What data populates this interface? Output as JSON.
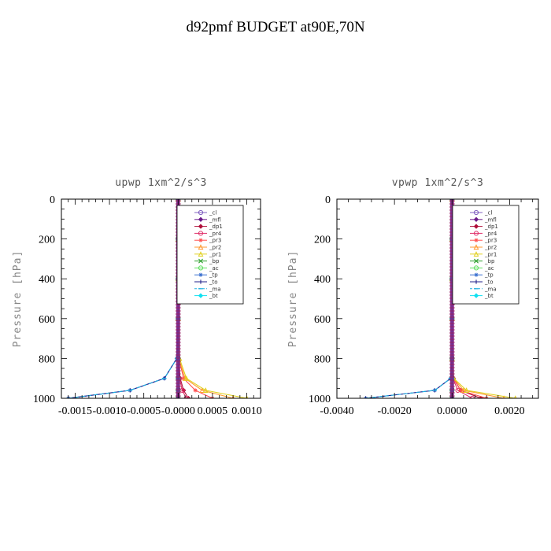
{
  "title": "d92pmf  BUDGET at90E,70N",
  "chart_data": [
    {
      "type": "line",
      "title": "upwp  1xm^2/s^3",
      "ylabel": "Pressure [hPa]",
      "xlabel": "",
      "xlim": [
        -0.0017,
        0.0012
      ],
      "ylim": [
        1000,
        0
      ],
      "xticks": [
        -0.0015,
        -0.001,
        -0.0005,
        0.0,
        0.0005,
        0.001
      ],
      "xtick_labels": [
        "-0.0015",
        "-0.0010",
        "-0.0005",
        "-0.0000",
        "0.0005",
        "0.0010"
      ],
      "yticks": [
        0,
        200,
        400,
        600,
        800,
        1000
      ],
      "ytick_labels": [
        "0",
        "200",
        "400",
        "600",
        "800",
        "1000"
      ],
      "legend_position": "top-right",
      "series": [
        {
          "name": "_cl",
          "color": "#8060c0",
          "marker": "circle",
          "x": [
            0,
            0,
            0,
            0,
            0,
            0,
            0,
            0
          ],
          "y": [
            0,
            200,
            400,
            600,
            800,
            900,
            960,
            1000
          ]
        },
        {
          "name": "_mfl",
          "color": "#6a1a8a",
          "marker": "diamond",
          "x": [
            0,
            0,
            0,
            0,
            0,
            0,
            0,
            0
          ],
          "y": [
            0,
            200,
            400,
            600,
            800,
            900,
            960,
            1000
          ]
        },
        {
          "name": "_dp1",
          "color": "#b0103a",
          "marker": "diamond",
          "x": [
            0,
            0,
            0,
            0,
            0,
            3e-05,
            8e-05,
            0.00015
          ],
          "y": [
            0,
            200,
            400,
            600,
            800,
            900,
            960,
            1000
          ]
        },
        {
          "name": "_pr4",
          "color": "#e0306a",
          "marker": "circle",
          "x": [
            0,
            0,
            0,
            0,
            0,
            2e-05,
            6e-05,
            0.00012
          ],
          "y": [
            0,
            200,
            400,
            600,
            800,
            900,
            960,
            1000
          ]
        },
        {
          "name": "_pr3",
          "color": "#ff5050",
          "marker": "star",
          "x": [
            0,
            0,
            0,
            0,
            1e-05,
            8e-05,
            0.00025,
            0.0005
          ],
          "y": [
            0,
            200,
            400,
            600,
            800,
            900,
            960,
            1000
          ]
        },
        {
          "name": "_pr2",
          "color": "#ff9a30",
          "marker": "triangle",
          "x": [
            0,
            0,
            0,
            0,
            1e-05,
            0.0001,
            0.00035,
            0.0008
          ],
          "y": [
            0,
            200,
            400,
            600,
            800,
            900,
            960,
            1000
          ]
        },
        {
          "name": "_pr1",
          "color": "#e0d020",
          "marker": "triangle",
          "x": [
            0,
            0,
            0,
            0,
            2e-05,
            0.00012,
            0.0004,
            0.001
          ],
          "y": [
            0,
            200,
            400,
            600,
            800,
            900,
            960,
            1000
          ]
        },
        {
          "name": "_bp",
          "color": "#30a030",
          "marker": "cross",
          "x": [
            0,
            0,
            0,
            0,
            0,
            0,
            0,
            0
          ],
          "y": [
            0,
            200,
            400,
            600,
            800,
            900,
            960,
            1000
          ]
        },
        {
          "name": "_ac",
          "color": "#60e060",
          "marker": "circle",
          "x": [
            0,
            0,
            0,
            0,
            0,
            0,
            0,
            0
          ],
          "y": [
            0,
            200,
            400,
            600,
            800,
            900,
            960,
            1000
          ]
        },
        {
          "name": "_tp",
          "color": "#3a70d0",
          "marker": "star",
          "x": [
            0,
            0,
            0,
            0,
            -2e-05,
            -0.0002,
            -0.0007,
            -0.0016
          ],
          "y": [
            0,
            200,
            400,
            600,
            800,
            900,
            960,
            1000
          ]
        },
        {
          "name": "_to",
          "color": "#20208a",
          "marker": "plus",
          "x": [
            0,
            0,
            0,
            0,
            -2e-05,
            -0.0002,
            -0.0007,
            -0.0016
          ],
          "y": [
            0,
            200,
            400,
            600,
            800,
            900,
            960,
            1000
          ]
        },
        {
          "name": "_ma",
          "color": "#20b0e0",
          "marker": "dash",
          "x": [
            0,
            0,
            0,
            0,
            -2e-05,
            -0.0002,
            -0.0007,
            -0.0016
          ],
          "y": [
            0,
            200,
            400,
            600,
            800,
            900,
            960,
            1000
          ]
        },
        {
          "name": "_bt",
          "color": "#10e0f0",
          "marker": "diamond",
          "x": [
            0,
            0,
            0,
            0,
            0,
            0,
            0,
            0
          ],
          "y": [
            0,
            200,
            400,
            600,
            800,
            900,
            960,
            1000
          ]
        }
      ]
    },
    {
      "type": "line",
      "title": "vpwp  1xm^2/s^3",
      "ylabel": "Pressure [hPa]",
      "xlabel": "",
      "xlim": [
        -0.004,
        0.003
      ],
      "ylim": [
        1000,
        0
      ],
      "xticks": [
        -0.004,
        -0.002,
        0.0,
        0.002
      ],
      "xtick_labels": [
        "-0.0040",
        "-0.0020",
        "0.0000",
        "0.0020"
      ],
      "yticks": [
        0,
        200,
        400,
        600,
        800,
        1000
      ],
      "ytick_labels": [
        "0",
        "200",
        "400",
        "600",
        "800",
        "1000"
      ],
      "legend_position": "top-right",
      "series": [
        {
          "name": "_cl",
          "color": "#8060c0",
          "marker": "circle",
          "x": [
            0,
            0,
            0,
            0,
            0,
            0,
            0,
            0
          ],
          "y": [
            0,
            200,
            400,
            600,
            800,
            900,
            960,
            1000
          ]
        },
        {
          "name": "_mfl",
          "color": "#6a1a8a",
          "marker": "diamond",
          "x": [
            0,
            0,
            0,
            0,
            0,
            0,
            0,
            0
          ],
          "y": [
            0,
            200,
            400,
            600,
            800,
            900,
            960,
            1000
          ]
        },
        {
          "name": "_dp1",
          "color": "#b0103a",
          "marker": "diamond",
          "x": [
            0,
            0,
            0,
            0,
            0,
            5e-05,
            0.0003,
            0.001
          ],
          "y": [
            0,
            200,
            400,
            600,
            800,
            900,
            960,
            1000
          ]
        },
        {
          "name": "_pr4",
          "color": "#e0306a",
          "marker": "circle",
          "x": [
            0,
            0,
            0,
            0,
            0,
            3e-05,
            0.0002,
            0.0007
          ],
          "y": [
            0,
            200,
            400,
            600,
            800,
            900,
            960,
            1000
          ]
        },
        {
          "name": "_pr3",
          "color": "#ff5050",
          "marker": "star",
          "x": [
            0,
            0,
            0,
            0,
            0,
            4e-05,
            0.0003,
            0.0012
          ],
          "y": [
            0,
            200,
            400,
            600,
            800,
            900,
            960,
            1000
          ]
        },
        {
          "name": "_pr2",
          "color": "#ff9a30",
          "marker": "triangle",
          "x": [
            0,
            0,
            0,
            0,
            0,
            5e-05,
            0.0004,
            0.0018
          ],
          "y": [
            0,
            200,
            400,
            600,
            800,
            900,
            960,
            1000
          ]
        },
        {
          "name": "_pr1",
          "color": "#e0d020",
          "marker": "triangle",
          "x": [
            0,
            0,
            0,
            0,
            0,
            6e-05,
            0.0005,
            0.0022
          ],
          "y": [
            0,
            200,
            400,
            600,
            800,
            900,
            960,
            1000
          ]
        },
        {
          "name": "_bp",
          "color": "#30a030",
          "marker": "cross",
          "x": [
            0,
            0,
            0,
            0,
            0,
            0,
            0,
            0
          ],
          "y": [
            0,
            200,
            400,
            600,
            800,
            900,
            960,
            1000
          ]
        },
        {
          "name": "_ac",
          "color": "#60e060",
          "marker": "circle",
          "x": [
            0,
            0,
            0,
            0,
            0,
            0,
            0,
            0
          ],
          "y": [
            0,
            200,
            400,
            600,
            800,
            900,
            960,
            1000
          ]
        },
        {
          "name": "_tp",
          "color": "#3a70d0",
          "marker": "star",
          "x": [
            0,
            0,
            0,
            0,
            0,
            -5e-05,
            -0.0006,
            -0.003
          ],
          "y": [
            0,
            200,
            400,
            600,
            800,
            900,
            960,
            1000
          ]
        },
        {
          "name": "_to",
          "color": "#20208a",
          "marker": "plus",
          "x": [
            0,
            0,
            0,
            0,
            0,
            -5e-05,
            -0.0006,
            -0.003
          ],
          "y": [
            0,
            200,
            400,
            600,
            800,
            900,
            960,
            1000
          ]
        },
        {
          "name": "_ma",
          "color": "#20b0e0",
          "marker": "dash",
          "x": [
            0,
            0,
            0,
            0,
            0,
            -5e-05,
            -0.0006,
            -0.003
          ],
          "y": [
            0,
            200,
            400,
            600,
            800,
            900,
            960,
            1000
          ]
        },
        {
          "name": "_bt",
          "color": "#10e0f0",
          "marker": "diamond",
          "x": [
            0,
            0,
            0,
            0,
            0,
            0,
            0,
            0
          ],
          "y": [
            0,
            200,
            400,
            600,
            800,
            900,
            960,
            1000
          ]
        }
      ]
    }
  ]
}
